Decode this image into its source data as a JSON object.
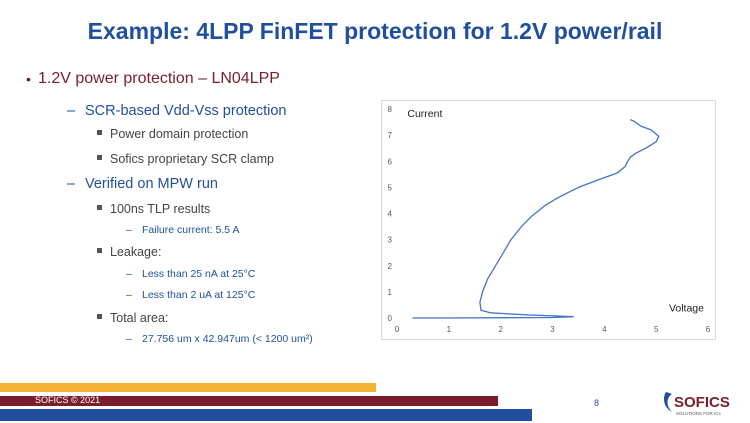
{
  "slide": {
    "title": "Example: 4LPP FinFET protection for 1.2V power/rail",
    "page_number": "8",
    "footer": "SOFICS © 2021",
    "logo_text": "SOFICS",
    "logo_subtext": "SOLUTIONS FOR ICs"
  },
  "bullets": {
    "b1": "1.2V power protection – LN04LPP",
    "b1_1": "SCR-based Vdd-Vss protection",
    "b1_1_1": "Power domain protection",
    "b1_1_2": "Sofics proprietary SCR clamp",
    "b1_2": "Verified on MPW run",
    "b1_2_1": "100ns TLP results",
    "b1_2_1_1": "Failure current: 5.5 A",
    "b1_2_2": "Leakage:",
    "b1_2_2_1": "Less than 25 nA at 25°C",
    "b1_2_2_2": "Less than 2 uA at 125°C",
    "b1_2_3": "Total area:",
    "b1_2_3_1": "27.756 um x 42.947um (< 1200 um²)"
  },
  "colors": {
    "title": "#1f4f9e",
    "bullet_level1": "#7b1e2c",
    "curve": "#4472c4",
    "footer_orange": "#f5b335",
    "footer_maroon": "#7b1e2c",
    "footer_blue": "#1f4f9e"
  },
  "chart_data": {
    "type": "line",
    "xlabel": "Voltage",
    "ylabel": "Current",
    "xlim": [
      0,
      6
    ],
    "ylim": [
      0,
      8
    ],
    "x_ticks": [
      "0",
      "1",
      "2",
      "3",
      "4",
      "5",
      "6"
    ],
    "y_ticks": [
      "0",
      "1",
      "2",
      "3",
      "4",
      "5",
      "6",
      "7",
      "8"
    ],
    "grid": false,
    "series": [
      {
        "x": [
          0.3,
          1.0,
          2.0,
          3.0,
          3.4,
          2.5,
          1.8,
          1.62,
          1.6,
          1.65,
          1.75,
          1.9,
          2.05,
          2.2,
          2.4,
          2.6,
          2.85,
          3.1,
          3.5,
          3.9,
          4.25,
          4.4,
          4.45,
          4.5,
          4.6,
          4.8,
          5.0,
          5.05,
          4.9,
          4.7,
          4.6,
          4.5
        ],
        "y": [
          0.0,
          0.0,
          0.01,
          0.02,
          0.05,
          0.12,
          0.2,
          0.3,
          0.6,
          1.0,
          1.5,
          2.0,
          2.5,
          3.0,
          3.5,
          3.9,
          4.3,
          4.6,
          5.0,
          5.3,
          5.55,
          5.8,
          6.0,
          6.15,
          6.3,
          6.5,
          6.75,
          6.95,
          7.2,
          7.35,
          7.5,
          7.6
        ]
      }
    ]
  }
}
